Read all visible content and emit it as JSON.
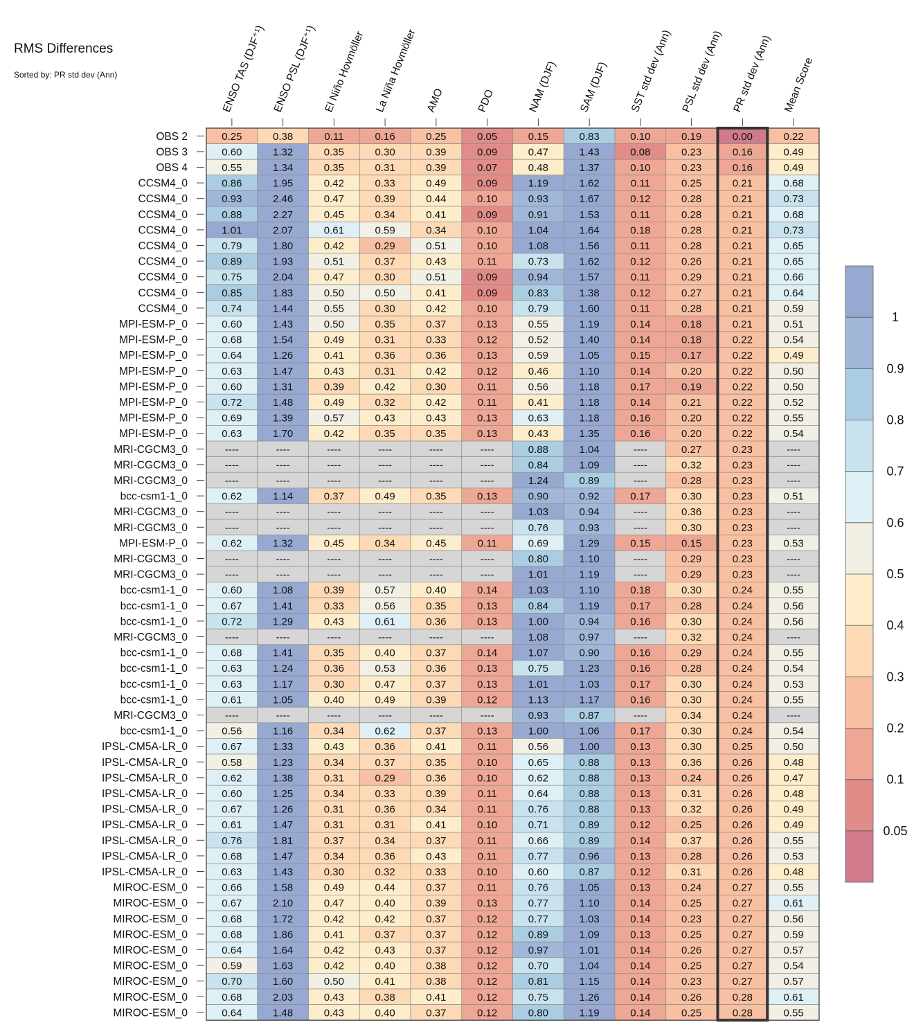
{
  "title": "RMS Differences",
  "subtitle": "Sorted by: PR std dev (Ann)",
  "missing_label": "----",
  "missing_color": "#d6d6d6",
  "chart_data": {
    "type": "heatmap",
    "columns": [
      "ENSO TAS (DJF⁺¹)",
      "ENSO PSL (DJF⁺¹)",
      "El Niño Hovmöller",
      "La Niña Hovmöller",
      "AMO",
      "PDO",
      "NAM (DJF)",
      "SAM (DJF)",
      "SST std dev (Ann)",
      "PSL std dev (Ann)",
      "PR std dev (Ann)",
      "Mean Score"
    ],
    "highlighted_column": "PR std dev (Ann)",
    "rows": [
      "OBS 2",
      "OBS 3",
      "OBS 4",
      "CCSM4_0",
      "CCSM4_0",
      "CCSM4_0",
      "CCSM4_0",
      "CCSM4_0",
      "CCSM4_0",
      "CCSM4_0",
      "CCSM4_0",
      "CCSM4_0",
      "MPI-ESM-P_0",
      "MPI-ESM-P_0",
      "MPI-ESM-P_0",
      "MPI-ESM-P_0",
      "MPI-ESM-P_0",
      "MPI-ESM-P_0",
      "MPI-ESM-P_0",
      "MPI-ESM-P_0",
      "MRI-CGCM3_0",
      "MRI-CGCM3_0",
      "MRI-CGCM3_0",
      "bcc-csm1-1_0",
      "MRI-CGCM3_0",
      "MRI-CGCM3_0",
      "MPI-ESM-P_0",
      "MRI-CGCM3_0",
      "MRI-CGCM3_0",
      "bcc-csm1-1_0",
      "bcc-csm1-1_0",
      "bcc-csm1-1_0",
      "MRI-CGCM3_0",
      "bcc-csm1-1_0",
      "bcc-csm1-1_0",
      "bcc-csm1-1_0",
      "bcc-csm1-1_0",
      "MRI-CGCM3_0",
      "bcc-csm1-1_0",
      "IPSL-CM5A-LR_0",
      "IPSL-CM5A-LR_0",
      "IPSL-CM5A-LR_0",
      "IPSL-CM5A-LR_0",
      "IPSL-CM5A-LR_0",
      "IPSL-CM5A-LR_0",
      "IPSL-CM5A-LR_0",
      "IPSL-CM5A-LR_0",
      "IPSL-CM5A-LR_0",
      "MIROC-ESM_0",
      "MIROC-ESM_0",
      "MIROC-ESM_0",
      "MIROC-ESM_0",
      "MIROC-ESM_0",
      "MIROC-ESM_0",
      "MIROC-ESM_0",
      "MIROC-ESM_0",
      "MIROC-ESM_0"
    ],
    "values": [
      [
        0.25,
        0.38,
        0.11,
        0.16,
        0.25,
        0.05,
        0.15,
        0.83,
        0.1,
        0.19,
        0.0,
        0.22
      ],
      [
        0.6,
        1.32,
        0.35,
        0.3,
        0.39,
        0.09,
        0.47,
        1.43,
        0.08,
        0.23,
        0.16,
        0.49
      ],
      [
        0.55,
        1.34,
        0.35,
        0.31,
        0.39,
        0.07,
        0.48,
        1.37,
        0.1,
        0.23,
        0.16,
        0.49
      ],
      [
        0.86,
        1.95,
        0.42,
        0.33,
        0.49,
        0.09,
        1.19,
        1.62,
        0.11,
        0.25,
        0.21,
        0.68
      ],
      [
        0.93,
        2.46,
        0.47,
        0.39,
        0.44,
        0.1,
        0.93,
        1.67,
        0.12,
        0.28,
        0.21,
        0.73
      ],
      [
        0.88,
        2.27,
        0.45,
        0.34,
        0.41,
        0.09,
        0.91,
        1.53,
        0.11,
        0.28,
        0.21,
        0.68
      ],
      [
        1.01,
        2.07,
        0.61,
        0.59,
        0.34,
        0.1,
        1.04,
        1.64,
        0.18,
        0.28,
        0.21,
        0.73
      ],
      [
        0.79,
        1.8,
        0.42,
        0.29,
        0.51,
        0.1,
        1.08,
        1.56,
        0.11,
        0.28,
        0.21,
        0.65
      ],
      [
        0.89,
        1.93,
        0.51,
        0.37,
        0.43,
        0.11,
        0.73,
        1.62,
        0.12,
        0.26,
        0.21,
        0.65
      ],
      [
        0.75,
        2.04,
        0.47,
        0.3,
        0.51,
        0.09,
        0.94,
        1.57,
        0.11,
        0.29,
        0.21,
        0.66
      ],
      [
        0.85,
        1.83,
        0.5,
        0.5,
        0.41,
        0.09,
        0.83,
        1.38,
        0.12,
        0.27,
        0.21,
        0.64
      ],
      [
        0.74,
        1.44,
        0.55,
        0.3,
        0.42,
        0.1,
        0.79,
        1.6,
        0.11,
        0.28,
        0.21,
        0.59
      ],
      [
        0.6,
        1.43,
        0.5,
        0.35,
        0.37,
        0.13,
        0.55,
        1.19,
        0.14,
        0.18,
        0.21,
        0.51
      ],
      [
        0.68,
        1.54,
        0.49,
        0.31,
        0.33,
        0.12,
        0.52,
        1.4,
        0.14,
        0.18,
        0.22,
        0.54
      ],
      [
        0.64,
        1.26,
        0.41,
        0.36,
        0.36,
        0.13,
        0.59,
        1.05,
        0.15,
        0.17,
        0.22,
        0.49
      ],
      [
        0.63,
        1.47,
        0.43,
        0.31,
        0.42,
        0.12,
        0.46,
        1.1,
        0.14,
        0.2,
        0.22,
        0.5
      ],
      [
        0.6,
        1.31,
        0.39,
        0.42,
        0.3,
        0.11,
        0.56,
        1.18,
        0.17,
        0.19,
        0.22,
        0.5
      ],
      [
        0.72,
        1.48,
        0.49,
        0.32,
        0.42,
        0.11,
        0.41,
        1.18,
        0.14,
        0.21,
        0.22,
        0.52
      ],
      [
        0.69,
        1.39,
        0.57,
        0.43,
        0.43,
        0.13,
        0.63,
        1.18,
        0.16,
        0.2,
        0.22,
        0.55
      ],
      [
        0.63,
        1.7,
        0.42,
        0.35,
        0.35,
        0.13,
        0.43,
        1.35,
        0.16,
        0.2,
        0.22,
        0.54
      ],
      [
        null,
        null,
        null,
        null,
        null,
        null,
        0.88,
        1.04,
        null,
        0.27,
        0.23,
        null
      ],
      [
        null,
        null,
        null,
        null,
        null,
        null,
        0.84,
        1.09,
        null,
        0.32,
        0.23,
        null
      ],
      [
        null,
        null,
        null,
        null,
        null,
        null,
        1.24,
        0.89,
        null,
        0.28,
        0.23,
        null
      ],
      [
        0.62,
        1.14,
        0.37,
        0.49,
        0.35,
        0.13,
        0.9,
        0.92,
        0.17,
        0.3,
        0.23,
        0.51
      ],
      [
        null,
        null,
        null,
        null,
        null,
        null,
        1.03,
        0.94,
        null,
        0.36,
        0.23,
        null
      ],
      [
        null,
        null,
        null,
        null,
        null,
        null,
        0.76,
        0.93,
        null,
        0.3,
        0.23,
        null
      ],
      [
        0.62,
        1.32,
        0.45,
        0.34,
        0.45,
        0.11,
        0.69,
        1.29,
        0.15,
        0.15,
        0.23,
        0.53
      ],
      [
        null,
        null,
        null,
        null,
        null,
        null,
        0.8,
        1.1,
        null,
        0.29,
        0.23,
        null
      ],
      [
        null,
        null,
        null,
        null,
        null,
        null,
        1.01,
        1.19,
        null,
        0.29,
        0.23,
        null
      ],
      [
        0.6,
        1.08,
        0.39,
        0.57,
        0.4,
        0.14,
        1.03,
        1.1,
        0.18,
        0.3,
        0.24,
        0.55
      ],
      [
        0.67,
        1.41,
        0.33,
        0.56,
        0.35,
        0.13,
        0.84,
        1.19,
        0.17,
        0.28,
        0.24,
        0.56
      ],
      [
        0.72,
        1.29,
        0.43,
        0.61,
        0.36,
        0.13,
        1.0,
        0.94,
        0.16,
        0.3,
        0.24,
        0.56
      ],
      [
        null,
        null,
        null,
        null,
        null,
        null,
        1.08,
        0.97,
        null,
        0.32,
        0.24,
        null
      ],
      [
        0.68,
        1.41,
        0.35,
        0.4,
        0.37,
        0.14,
        1.07,
        0.9,
        0.16,
        0.29,
        0.24,
        0.55
      ],
      [
        0.63,
        1.24,
        0.36,
        0.53,
        0.36,
        0.13,
        0.75,
        1.23,
        0.16,
        0.28,
        0.24,
        0.54
      ],
      [
        0.63,
        1.17,
        0.3,
        0.47,
        0.37,
        0.13,
        1.01,
        1.03,
        0.17,
        0.3,
        0.24,
        0.53
      ],
      [
        0.61,
        1.05,
        0.4,
        0.49,
        0.39,
        0.12,
        1.13,
        1.17,
        0.16,
        0.3,
        0.24,
        0.55
      ],
      [
        null,
        null,
        null,
        null,
        null,
        null,
        0.93,
        0.87,
        null,
        0.34,
        0.24,
        null
      ],
      [
        0.56,
        1.16,
        0.34,
        0.62,
        0.37,
        0.13,
        1.0,
        1.06,
        0.17,
        0.3,
        0.24,
        0.54
      ],
      [
        0.67,
        1.33,
        0.43,
        0.36,
        0.41,
        0.11,
        0.56,
        1.0,
        0.13,
        0.3,
        0.25,
        0.5
      ],
      [
        0.58,
        1.23,
        0.34,
        0.37,
        0.35,
        0.1,
        0.65,
        0.88,
        0.13,
        0.36,
        0.26,
        0.48
      ],
      [
        0.62,
        1.38,
        0.31,
        0.29,
        0.36,
        0.1,
        0.62,
        0.88,
        0.13,
        0.24,
        0.26,
        0.47
      ],
      [
        0.6,
        1.25,
        0.34,
        0.33,
        0.39,
        0.11,
        0.64,
        0.88,
        0.13,
        0.31,
        0.26,
        0.48
      ],
      [
        0.67,
        1.26,
        0.31,
        0.36,
        0.34,
        0.11,
        0.76,
        0.88,
        0.13,
        0.32,
        0.26,
        0.49
      ],
      [
        0.61,
        1.47,
        0.31,
        0.31,
        0.41,
        0.1,
        0.71,
        0.89,
        0.12,
        0.25,
        0.26,
        0.49
      ],
      [
        0.76,
        1.81,
        0.37,
        0.34,
        0.37,
        0.11,
        0.66,
        0.89,
        0.14,
        0.37,
        0.26,
        0.55
      ],
      [
        0.68,
        1.47,
        0.34,
        0.36,
        0.43,
        0.11,
        0.77,
        0.96,
        0.13,
        0.28,
        0.26,
        0.53
      ],
      [
        0.63,
        1.43,
        0.3,
        0.32,
        0.33,
        0.1,
        0.6,
        0.87,
        0.12,
        0.31,
        0.26,
        0.48
      ],
      [
        0.66,
        1.58,
        0.49,
        0.44,
        0.37,
        0.11,
        0.76,
        1.05,
        0.13,
        0.24,
        0.27,
        0.55
      ],
      [
        0.67,
        2.1,
        0.47,
        0.4,
        0.39,
        0.13,
        0.77,
        1.1,
        0.14,
        0.25,
        0.27,
        0.61
      ],
      [
        0.68,
        1.72,
        0.42,
        0.42,
        0.37,
        0.12,
        0.77,
        1.03,
        0.14,
        0.23,
        0.27,
        0.56
      ],
      [
        0.68,
        1.86,
        0.41,
        0.37,
        0.37,
        0.12,
        0.89,
        1.09,
        0.13,
        0.25,
        0.27,
        0.59
      ],
      [
        0.64,
        1.64,
        0.42,
        0.43,
        0.37,
        0.12,
        0.97,
        1.01,
        0.14,
        0.26,
        0.27,
        0.57
      ],
      [
        0.59,
        1.63,
        0.42,
        0.4,
        0.38,
        0.12,
        0.7,
        1.04,
        0.14,
        0.25,
        0.27,
        0.54
      ],
      [
        0.7,
        1.6,
        0.5,
        0.41,
        0.38,
        0.12,
        0.81,
        1.15,
        0.14,
        0.23,
        0.27,
        0.57
      ],
      [
        0.68,
        2.03,
        0.43,
        0.38,
        0.41,
        0.12,
        0.75,
        1.26,
        0.14,
        0.26,
        0.28,
        0.61
      ],
      [
        0.64,
        1.48,
        0.43,
        0.4,
        0.37,
        0.12,
        0.8,
        1.19,
        0.14,
        0.25,
        0.28,
        0.55
      ]
    ],
    "colorbar": {
      "boundaries": [
        0.05,
        0.1,
        0.2,
        0.3,
        0.4,
        0.5,
        0.6,
        0.7,
        0.8,
        0.9,
        1
      ],
      "tick_labels": [
        "1",
        "0.9",
        "0.8",
        "0.7",
        "0.6",
        "0.5",
        "0.4",
        "0.3",
        "0.2",
        "0.1",
        "0.05"
      ],
      "colors": [
        "#d17a8b",
        "#e18c89",
        "#efa795",
        "#f8c0a2",
        "#fddab5",
        "#fdedcb",
        "#f2f0e5",
        "#def0f5",
        "#c9e3ee",
        "#aacde2",
        "#a0b7d8",
        "#97a9d1"
      ]
    }
  }
}
